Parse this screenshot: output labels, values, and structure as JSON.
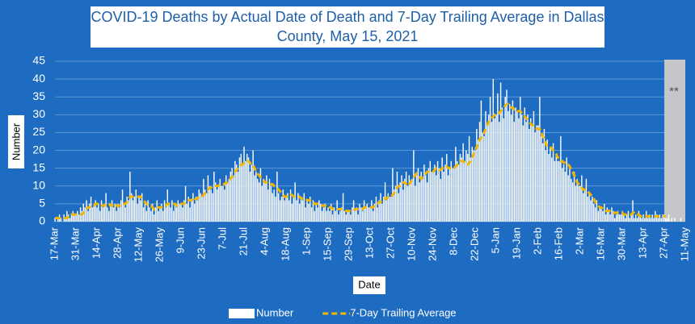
{
  "chart_data": {
    "type": "bar",
    "title": "COVID-19 Deaths by Actual Date of Death and 7-Day Trailing Average in Dallas County, May 15, 2021",
    "y_label": "Number",
    "x_label": "Date",
    "annotation": "**",
    "ylim": [
      0,
      45
    ],
    "yticks": [
      0,
      5,
      10,
      15,
      20,
      25,
      30,
      35,
      40,
      45
    ],
    "grid": true,
    "legend": "bottom",
    "categories": [
      "17-Mar",
      null,
      null,
      null,
      null,
      null,
      null,
      null,
      null,
      null,
      null,
      null,
      null,
      null,
      "31-Mar",
      null,
      null,
      null,
      null,
      null,
      null,
      null,
      null,
      null,
      null,
      null,
      null,
      null,
      "14-Apr",
      null,
      null,
      null,
      null,
      null,
      null,
      null,
      null,
      null,
      null,
      null,
      null,
      null,
      "28-Apr",
      null,
      null,
      null,
      null,
      null,
      null,
      null,
      null,
      null,
      null,
      null,
      null,
      null,
      "12-May",
      null,
      null,
      null,
      null,
      null,
      null,
      null,
      null,
      null,
      null,
      null,
      null,
      null,
      "26-May",
      null,
      null,
      null,
      null,
      null,
      null,
      null,
      null,
      null,
      null,
      null,
      null,
      null,
      "9-Jun",
      null,
      null,
      null,
      null,
      null,
      null,
      null,
      null,
      null,
      null,
      null,
      null,
      null,
      "23-Jun",
      null,
      null,
      null,
      null,
      null,
      null,
      null,
      null,
      null,
      null,
      null,
      null,
      null,
      "7-Jul",
      null,
      null,
      null,
      null,
      null,
      null,
      null,
      null,
      null,
      null,
      null,
      null,
      null,
      "21-Jul",
      null,
      null,
      null,
      null,
      null,
      null,
      null,
      null,
      null,
      null,
      null,
      null,
      null,
      "4-Aug",
      null,
      null,
      null,
      null,
      null,
      null,
      null,
      null,
      null,
      null,
      null,
      null,
      null,
      "18-Aug",
      null,
      null,
      null,
      null,
      null,
      null,
      null,
      null,
      null,
      null,
      null,
      null,
      null,
      "1-Sep",
      null,
      null,
      null,
      null,
      null,
      null,
      null,
      null,
      null,
      null,
      null,
      null,
      null,
      "15-Sep",
      null,
      null,
      null,
      null,
      null,
      null,
      null,
      null,
      null,
      null,
      null,
      null,
      null,
      "29-Sep",
      null,
      null,
      null,
      null,
      null,
      null,
      null,
      null,
      null,
      null,
      null,
      null,
      null,
      "13-Oct",
      null,
      null,
      null,
      null,
      null,
      null,
      null,
      null,
      null,
      null,
      null,
      null,
      null,
      "27-Oct",
      null,
      null,
      null,
      null,
      null,
      null,
      null,
      null,
      null,
      null,
      null,
      null,
      null,
      "10-Nov",
      null,
      null,
      null,
      null,
      null,
      null,
      null,
      null,
      null,
      null,
      null,
      null,
      null,
      "24-Nov",
      null,
      null,
      null,
      null,
      null,
      null,
      null,
      null,
      null,
      null,
      null,
      null,
      null,
      "8-Dec",
      null,
      null,
      null,
      null,
      null,
      null,
      null,
      null,
      null,
      null,
      null,
      null,
      null,
      "22-Dec",
      null,
      null,
      null,
      null,
      null,
      null,
      null,
      null,
      null,
      null,
      null,
      null,
      null,
      "5-Jan",
      null,
      null,
      null,
      null,
      null,
      null,
      null,
      null,
      null,
      null,
      null,
      null,
      null,
      "19-Jan",
      null,
      null,
      null,
      null,
      null,
      null,
      null,
      null,
      null,
      null,
      null,
      null,
      null,
      "2-Feb",
      null,
      null,
      null,
      null,
      null,
      null,
      null,
      null,
      null,
      null,
      null,
      null,
      null,
      "16-Feb",
      null,
      null,
      null,
      null,
      null,
      null,
      null,
      null,
      null,
      null,
      null,
      null,
      null,
      "2-Mar",
      null,
      null,
      null,
      null,
      null,
      null,
      null,
      null,
      null,
      null,
      null,
      null,
      null,
      "16-Mar",
      null,
      null,
      null,
      null,
      null,
      null,
      null,
      null,
      null,
      null,
      null,
      null,
      null,
      "30-Mar",
      null,
      null,
      null,
      null,
      null,
      null,
      null,
      null,
      null,
      null,
      null,
      null,
      null,
      "13-Apr",
      null,
      null,
      null,
      null,
      null,
      null,
      null,
      null,
      null,
      null,
      null,
      null,
      null,
      "27-Apr",
      null,
      null,
      null,
      null,
      null,
      null,
      null,
      null,
      null,
      null,
      null,
      null,
      null,
      "11-May"
    ],
    "series": [
      {
        "name": "Number",
        "color": "#ffffff",
        "values": [
          1,
          0,
          1,
          2,
          1,
          0,
          2,
          1,
          3,
          2,
          1,
          2,
          3,
          2,
          2,
          3,
          2,
          4,
          3,
          5,
          4,
          6,
          3,
          5,
          7,
          4,
          5,
          6,
          4,
          5,
          3,
          6,
          4,
          5,
          8,
          4,
          3,
          5,
          6,
          4,
          5,
          3,
          5,
          4,
          6,
          9,
          5,
          4,
          7,
          6,
          14,
          8,
          6,
          7,
          9,
          5,
          7,
          6,
          8,
          4,
          5,
          3,
          6,
          4,
          3,
          5,
          2,
          4,
          6,
          3,
          4,
          5,
          3,
          6,
          4,
          9,
          5,
          4,
          6,
          3,
          5,
          4,
          6,
          5,
          5,
          4,
          6,
          10,
          5,
          7,
          4,
          6,
          8,
          5,
          7,
          6,
          9,
          8,
          7,
          12,
          9,
          8,
          13,
          10,
          9,
          8,
          14,
          11,
          9,
          10,
          12,
          10,
          10,
          9,
          13,
          11,
          12,
          14,
          15,
          13,
          17,
          16,
          14,
          18,
          19,
          16,
          21,
          17,
          19,
          18,
          14,
          16,
          20,
          13,
          14,
          12,
          11,
          15,
          10,
          12,
          11,
          13,
          9,
          12,
          10,
          8,
          9,
          7,
          14,
          8,
          6,
          7,
          9,
          6,
          7,
          8,
          6,
          9,
          5,
          7,
          11,
          6,
          8,
          5,
          7,
          6,
          8,
          4,
          6,
          5,
          7,
          4,
          6,
          3,
          5,
          4,
          6,
          5,
          3,
          4,
          5,
          3,
          4,
          3,
          5,
          2,
          4,
          3,
          6,
          2,
          3,
          4,
          8,
          3,
          2,
          3,
          3,
          2,
          4,
          6,
          3,
          4,
          2,
          5,
          4,
          3,
          6,
          4,
          5,
          4,
          4,
          6,
          3,
          5,
          7,
          4,
          6,
          8,
          5,
          7,
          11,
          6,
          8,
          7,
          7,
          15,
          9,
          10,
          14,
          8,
          11,
          13,
          9,
          12,
          14,
          10,
          13,
          11,
          12,
          20,
          10,
          13,
          15,
          11,
          14,
          12,
          16,
          13,
          11,
          15,
          17,
          14,
          14,
          16,
          13,
          17,
          15,
          12,
          18,
          14,
          16,
          19,
          13,
          15,
          17,
          15,
          15,
          21,
          17,
          16,
          19,
          18,
          22,
          17,
          20,
          19,
          24,
          18,
          21,
          20,
          20,
          26,
          23,
          28,
          34,
          25,
          24,
          31,
          27,
          30,
          35,
          28,
          40,
          29,
          30,
          36,
          28,
          39,
          32,
          29,
          35,
          37,
          31,
          33,
          30,
          34,
          28,
          32,
          31,
          29,
          35,
          30,
          27,
          32,
          28,
          30,
          26,
          29,
          27,
          31,
          25,
          27,
          27,
          35,
          24,
          22,
          26,
          20,
          23,
          19,
          21,
          18,
          22,
          17,
          19,
          17,
          17,
          24,
          15,
          16,
          14,
          18,
          13,
          15,
          12,
          11,
          14,
          10,
          12,
          10,
          10,
          13,
          8,
          9,
          12,
          7,
          8,
          6,
          7,
          5,
          4,
          6,
          3,
          4,
          4,
          3,
          5,
          2,
          4,
          3,
          2,
          4,
          3,
          1,
          2,
          3,
          2,
          2,
          3,
          2,
          1,
          2,
          3,
          1,
          2,
          6,
          1,
          2,
          1,
          3,
          2,
          1,
          2,
          1,
          3,
          1,
          2,
          1,
          2,
          1,
          3,
          2,
          1,
          2,
          1,
          2,
          2,
          1,
          1,
          2,
          0,
          1,
          0,
          1,
          0,
          0,
          0,
          1,
          0,
          0,
          0
        ]
      },
      {
        "name": "7-Day Trailing Average",
        "color": "#f2b600",
        "type": "line",
        "values": [
          1,
          1,
          1,
          1,
          1,
          1,
          1,
          1,
          1,
          1.5,
          1.5,
          2,
          2,
          2,
          2,
          2,
          2,
          2,
          2,
          2.5,
          3,
          3.5,
          4,
          4,
          4.5,
          4.5,
          4.5,
          5,
          5,
          5,
          4.5,
          4.5,
          4.5,
          4.5,
          5,
          5,
          5,
          4.5,
          4.5,
          5,
          4.5,
          4.5,
          4.5,
          4.5,
          4.5,
          5,
          5,
          5,
          5.5,
          6,
          7,
          7,
          7,
          7,
          7,
          7,
          7,
          7,
          6.5,
          6,
          5.5,
          5,
          4.5,
          4.5,
          4.5,
          4,
          3.5,
          4,
          4,
          4,
          4,
          4,
          4.5,
          4.5,
          4.5,
          5,
          5,
          5,
          5,
          5,
          5,
          4.5,
          4.5,
          5,
          5,
          5,
          5,
          5.5,
          6,
          6,
          6,
          6,
          6.5,
          6,
          6.5,
          6.5,
          7,
          7,
          7,
          7.5,
          8,
          8.5,
          9,
          9.5,
          9.5,
          10,
          10,
          10,
          10,
          10,
          10.5,
          10.5,
          10.5,
          10.5,
          11,
          11,
          11.5,
          12,
          12.5,
          13,
          14,
          14.5,
          15,
          15.5,
          16,
          16,
          16.5,
          17,
          17,
          17,
          16.5,
          16,
          16,
          15,
          14,
          13.5,
          13,
          12.5,
          12,
          11.5,
          11,
          11,
          11,
          11,
          10.5,
          10.5,
          10,
          10,
          9.5,
          9,
          8.5,
          8,
          7.5,
          7,
          7,
          7,
          7,
          7.5,
          7.5,
          7,
          7,
          7,
          7,
          7,
          6.5,
          6.5,
          6.5,
          6.5,
          6,
          6,
          6,
          5.5,
          5.5,
          5,
          5,
          5,
          5,
          4.5,
          4.5,
          4.5,
          4.5,
          4,
          4,
          4,
          4,
          3.5,
          3.5,
          3.5,
          3.5,
          3.5,
          3.5,
          3.5,
          3.5,
          3.5,
          3,
          3,
          3,
          3,
          3,
          3,
          3.5,
          3.5,
          3.5,
          3.5,
          3.5,
          3.5,
          4,
          4,
          4,
          4,
          4,
          4,
          4,
          4.5,
          5,
          5,
          5.5,
          5.5,
          6,
          6,
          6.5,
          6.5,
          7,
          7,
          7,
          7.5,
          8,
          9,
          9.5,
          10,
          10,
          10.5,
          11,
          11,
          10.5,
          10,
          10.5,
          11,
          12,
          12.5,
          13,
          13.5,
          13,
          12.5,
          12,
          12.5,
          13,
          13.5,
          14,
          14,
          14,
          14,
          14,
          14.5,
          15,
          15,
          14.5,
          14.5,
          15,
          15,
          15,
          15.5,
          15,
          15,
          15,
          15,
          15,
          15.5,
          16,
          16.5,
          17,
          17,
          17,
          16.5,
          16,
          16,
          16.5,
          17,
          18,
          19,
          20,
          21,
          22,
          23,
          23.5,
          24,
          25,
          26,
          27,
          28,
          28.5,
          29,
          29.5,
          30,
          30,
          30,
          30.5,
          31,
          31.5,
          32,
          32.5,
          33,
          33,
          32.5,
          32,
          32,
          31.5,
          31.5,
          31,
          31,
          31,
          30.5,
          30,
          29.5,
          29,
          28.5,
          28,
          27.5,
          27,
          27,
          26.5,
          26,
          26,
          26,
          25,
          24,
          23,
          22,
          21,
          21,
          21,
          20.5,
          20,
          19.5,
          19,
          18,
          17.5,
          17,
          17,
          16.5,
          16.5,
          16,
          16,
          15.5,
          14.5,
          14,
          13,
          12,
          11,
          10.5,
          10,
          9.5,
          9,
          9,
          9,
          8.5,
          8,
          7.5,
          7,
          6.5,
          5.5,
          5,
          4.5,
          4,
          4,
          3.5,
          3.5,
          3,
          3,
          3,
          3,
          3,
          2.5,
          2.5,
          2.5,
          2.5,
          2.5,
          2.5,
          2.5,
          2,
          2,
          2,
          2,
          2,
          2,
          2.5,
          2.5,
          2,
          2,
          2,
          1.5,
          1.5,
          1.5,
          1.5,
          1.5,
          1.5,
          1.5,
          1.5,
          1.5,
          1.5,
          1.5,
          1.5,
          1.5,
          1.5,
          1.5,
          1.5,
          1.5,
          1.5,
          null,
          null,
          null,
          null,
          null,
          null,
          null,
          null,
          null,
          null,
          null,
          null,
          null
        ]
      }
    ]
  }
}
